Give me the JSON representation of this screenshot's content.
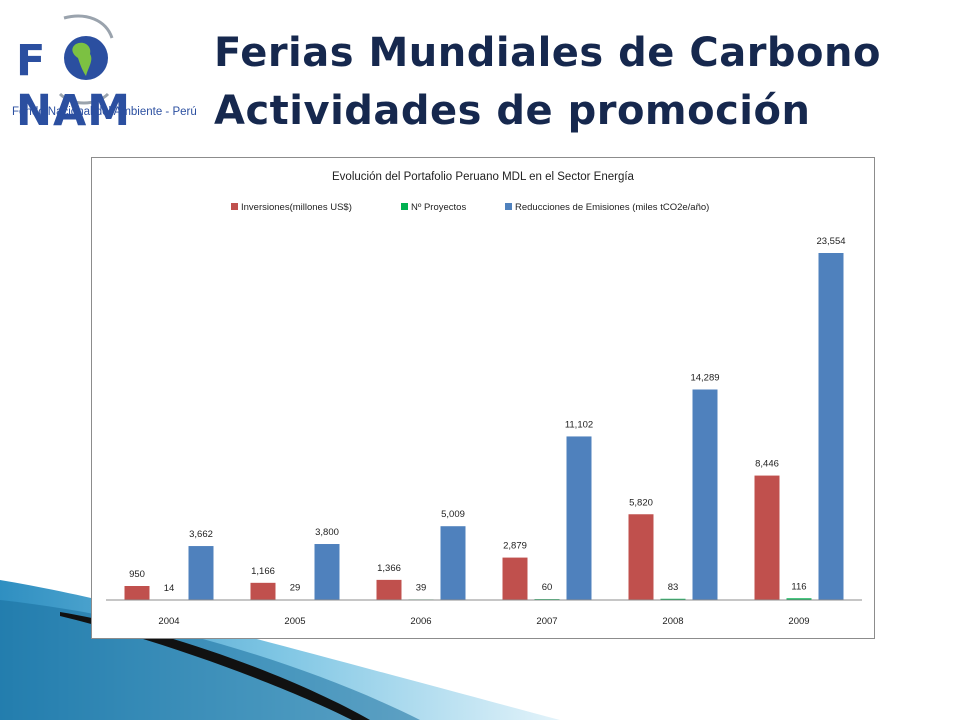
{
  "logo": {
    "word_pre": "F",
    "word_post": "NAM",
    "subtitle": "Fondo Nacional del Ambiente - Perú"
  },
  "slide": {
    "title_line1": "Ferias Mundiales de Carbono",
    "title_line2": "Actividades de promoción"
  },
  "colors": {
    "inversiones": "#c0504d",
    "proyectos": "#00b050",
    "reducciones": "#4f81bd",
    "title_text": "#16284e",
    "logo_blue": "#2b4fa0"
  },
  "chart_data": {
    "type": "bar",
    "title": "Evolución del Portafolio Peruano MDL en el Sector Energía",
    "categories": [
      "2004",
      "2005",
      "2006",
      "2007",
      "2008",
      "2009"
    ],
    "series": [
      {
        "name": "Inversiones(millones US$)",
        "values": [
          950,
          1166,
          1366,
          2879,
          5820,
          8446
        ],
        "labels": [
          "950",
          "1,166",
          "1,366",
          "2,879",
          "5,820",
          "8,446"
        ]
      },
      {
        "name": "Nº Proyectos",
        "values": [
          14,
          29,
          39,
          60,
          83,
          116
        ],
        "labels": [
          "14",
          "29",
          "39",
          "60",
          "83",
          "116"
        ]
      },
      {
        "name": "Reducciones de Emisiones (miles tCO2e/año)",
        "values": [
          3662,
          3800,
          5009,
          11102,
          14289,
          23554
        ],
        "labels": [
          "3,662",
          "3,800",
          "5,009",
          "11,102",
          "14,289",
          "23,554"
        ]
      }
    ],
    "legend_position": "top",
    "grid": false,
    "y_axis_visible": false
  }
}
